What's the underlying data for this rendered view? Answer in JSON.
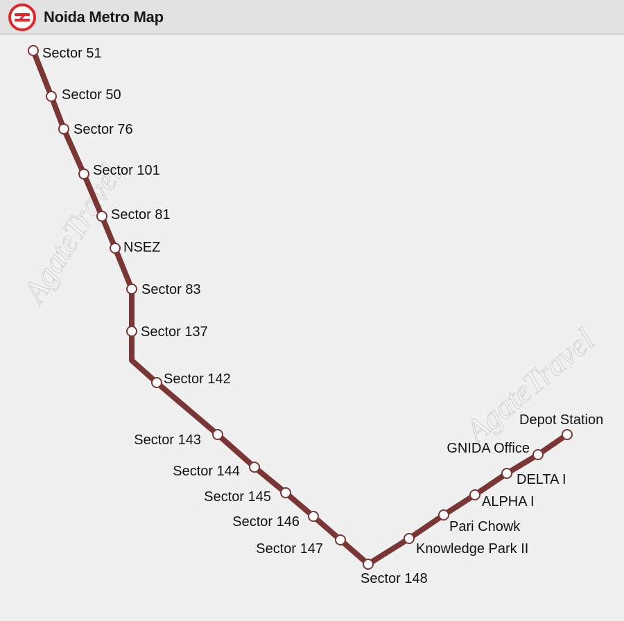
{
  "header": {
    "title": "Noida Metro Map",
    "logo_icon": "metro-logo-icon"
  },
  "watermark": {
    "text": "AgateTravel"
  },
  "colors": {
    "line": "#7a3535",
    "station_fill": "#ffffff",
    "logo_red": "#e3262b",
    "header_bg": "#e2e2e2",
    "background": "#f0f0f0"
  },
  "stations": [
    {
      "name": "Sector 51"
    },
    {
      "name": "Sector 50"
    },
    {
      "name": "Sector 76"
    },
    {
      "name": "Sector 101"
    },
    {
      "name": "Sector 81"
    },
    {
      "name": "NSEZ"
    },
    {
      "name": "Sector 83"
    },
    {
      "name": "Sector 137"
    },
    {
      "name": "Sector 142"
    },
    {
      "name": "Sector 143"
    },
    {
      "name": "Sector 144"
    },
    {
      "name": "Sector 145"
    },
    {
      "name": "Sector 146"
    },
    {
      "name": "Sector 147"
    },
    {
      "name": "Sector 148"
    },
    {
      "name": "Knowledge Park II"
    },
    {
      "name": "Pari Chowk"
    },
    {
      "name": "ALPHA I"
    },
    {
      "name": "DELTA I"
    },
    {
      "name": "GNIDA Office"
    },
    {
      "name": "Depot Station"
    }
  ]
}
